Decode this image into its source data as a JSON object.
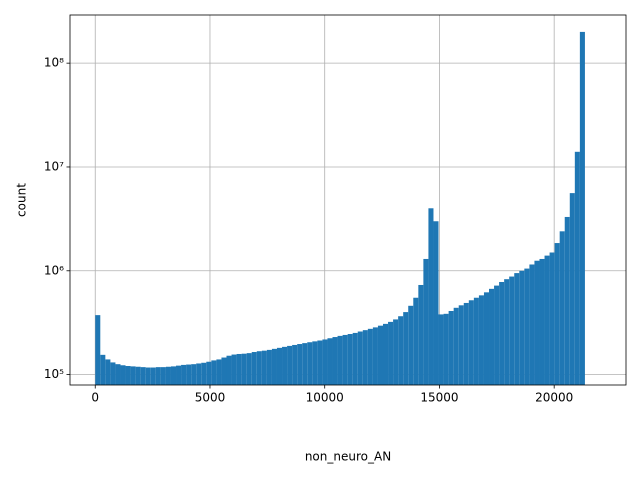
{
  "chart_data": {
    "type": "histogram",
    "x_label": "non_neuro_AN",
    "y_label": "count",
    "color": "#1f77b4",
    "grid": true,
    "y_scale": "log",
    "bins": [
      0,
      220,
      440,
      660,
      880,
      1100,
      1320,
      1540,
      1760,
      1980,
      2200,
      2420,
      2640,
      2860,
      3080,
      3300,
      3520,
      3740,
      3960,
      4180,
      4400,
      4620,
      4840,
      5060,
      5280,
      5500,
      5720,
      5940,
      6160,
      6380,
      6600,
      6820,
      7040,
      7260,
      7480,
      7700,
      7920,
      8140,
      8360,
      8580,
      8800,
      9020,
      9240,
      9460,
      9680,
      9900,
      10120,
      10340,
      10560,
      10780,
      11000,
      11220,
      11440,
      11660,
      11880,
      12100,
      12320,
      12540,
      12760,
      12980,
      13200,
      13420,
      13640,
      13860,
      14080,
      14300,
      14520,
      14740,
      14960,
      15180,
      15400,
      15620,
      15840,
      16060,
      16280,
      16500,
      16720,
      16940,
      17160,
      17380,
      17600,
      17820,
      18040,
      18260,
      18480,
      18700,
      18920,
      19140,
      19360,
      19580,
      19800,
      20020,
      20240,
      20460,
      20680,
      20900,
      21120,
      21340
    ],
    "values": [
      374000,
      155000,
      140000,
      131000,
      126000,
      123000,
      121000,
      120000,
      119000,
      118000,
      117000,
      117000,
      118000,
      118000,
      119000,
      120000,
      122000,
      124000,
      125000,
      126000,
      128000,
      130000,
      133000,
      137000,
      140000,
      146000,
      152000,
      156000,
      158000,
      159000,
      161000,
      165000,
      168000,
      170000,
      173000,
      177000,
      181000,
      185000,
      189000,
      193000,
      197000,
      201000,
      205000,
      209000,
      213000,
      218000,
      224000,
      230000,
      236000,
      241000,
      246000,
      252000,
      260000,
      268000,
      276000,
      285000,
      296000,
      308000,
      322000,
      340000,
      365000,
      400000,
      460000,
      550000,
      730000,
      1300000,
      4000000,
      3000000,
      380000,
      385000,
      410000,
      440000,
      465000,
      490000,
      520000,
      550000,
      580000,
      620000,
      670000,
      720000,
      780000,
      830000,
      880000,
      950000,
      1000000,
      1050000,
      1150000,
      1250000,
      1300000,
      1400000,
      1500000,
      1850000,
      2400000,
      3300000,
      5600000,
      14000000,
      200000000
    ],
    "xlim": [
      -1100,
      23130
    ],
    "xticks": [
      0,
      5000,
      10000,
      15000,
      20000
    ],
    "ylim": [
      79400,
      291000000
    ],
    "yticks": [
      {
        "value": 100000,
        "label": "10⁵"
      },
      {
        "value": 1000000,
        "label": "10⁶"
      },
      {
        "value": 10000000,
        "label": "10⁷"
      },
      {
        "value": 100000000,
        "label": "10⁸"
      }
    ]
  }
}
